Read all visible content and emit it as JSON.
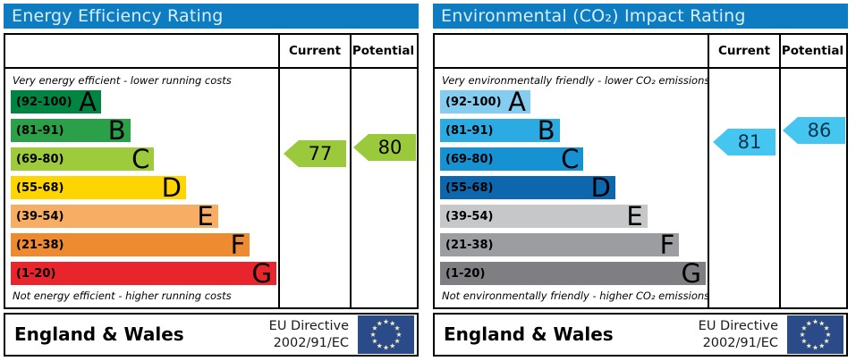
{
  "chart_data": [
    {
      "type": "bar",
      "variant": "epc-rating",
      "title": "Energy Efficiency Rating",
      "columns": {
        "current_label": "Current",
        "potential_label": "Potential"
      },
      "caption_top": "Very energy efficient - lower running costs",
      "caption_bottom": "Not energy efficient - higher running costs",
      "bands": [
        {
          "letter": "A",
          "range": "(92-100)",
          "lo": 92,
          "hi": 100,
          "color": "#008442",
          "width_pct": 34
        },
        {
          "letter": "B",
          "range": "(81-91)",
          "lo": 81,
          "hi": 91,
          "color": "#2ba048",
          "width_pct": 45
        },
        {
          "letter": "C",
          "range": "(69-80)",
          "lo": 69,
          "hi": 80,
          "color": "#9dcb3b",
          "width_pct": 54
        },
        {
          "letter": "D",
          "range": "(55-68)",
          "lo": 55,
          "hi": 68,
          "color": "#ffd500",
          "width_pct": 66
        },
        {
          "letter": "E",
          "range": "(39-54)",
          "lo": 39,
          "hi": 54,
          "color": "#f7ae64",
          "width_pct": 78
        },
        {
          "letter": "F",
          "range": "(21-38)",
          "lo": 21,
          "hi": 38,
          "color": "#ee8b30",
          "width_pct": 90
        },
        {
          "letter": "G",
          "range": "(1-20)",
          "lo": 1,
          "hi": 20,
          "color": "#e8242c",
          "width_pct": 100
        }
      ],
      "current": {
        "value": 77,
        "color": "#9aca3b",
        "text_color": "#000000"
      },
      "potential": {
        "value": 80,
        "color": "#9aca3b",
        "text_color": "#000000"
      },
      "footer": {
        "region": "England & Wales",
        "directive_line1": "EU Directive",
        "directive_line2": "2002/91/EC"
      }
    },
    {
      "type": "bar",
      "variant": "epc-rating",
      "title": "Environmental (CO₂) Impact Rating",
      "columns": {
        "current_label": "Current",
        "potential_label": "Potential"
      },
      "caption_top": "Very environmentally friendly - lower CO₂ emissions",
      "caption_bottom": "Not environmentally friendly - higher CO₂ emissions",
      "bands": [
        {
          "letter": "A",
          "range": "(92-100)",
          "lo": 92,
          "hi": 100,
          "color": "#84ccf0",
          "width_pct": 34
        },
        {
          "letter": "B",
          "range": "(81-91)",
          "lo": 81,
          "hi": 91,
          "color": "#2cabe3",
          "width_pct": 45
        },
        {
          "letter": "C",
          "range": "(69-80)",
          "lo": 69,
          "hi": 80,
          "color": "#1691d1",
          "width_pct": 54
        },
        {
          "letter": "D",
          "range": "(55-68)",
          "lo": 55,
          "hi": 68,
          "color": "#0e67ac",
          "width_pct": 66
        },
        {
          "letter": "E",
          "range": "(39-54)",
          "lo": 39,
          "hi": 54,
          "color": "#c6c7c9",
          "width_pct": 78
        },
        {
          "letter": "F",
          "range": "(21-38)",
          "lo": 21,
          "hi": 38,
          "color": "#9c9da1",
          "width_pct": 90
        },
        {
          "letter": "G",
          "range": "(1-20)",
          "lo": 1,
          "hi": 20,
          "color": "#7f7f83",
          "width_pct": 100
        }
      ],
      "current": {
        "value": 81,
        "color": "#45c6f1",
        "text_color": "#0b3350"
      },
      "potential": {
        "value": 86,
        "color": "#45c6f1",
        "text_color": "#0b3350"
      },
      "footer": {
        "region": "England & Wales",
        "directive_line1": "EU Directive",
        "directive_line2": "2002/91/EC"
      }
    }
  ],
  "style": {
    "header_blue": "#0d7cc1",
    "flag_blue": "#2b4a88",
    "flag_star": "#f1ecc3"
  }
}
